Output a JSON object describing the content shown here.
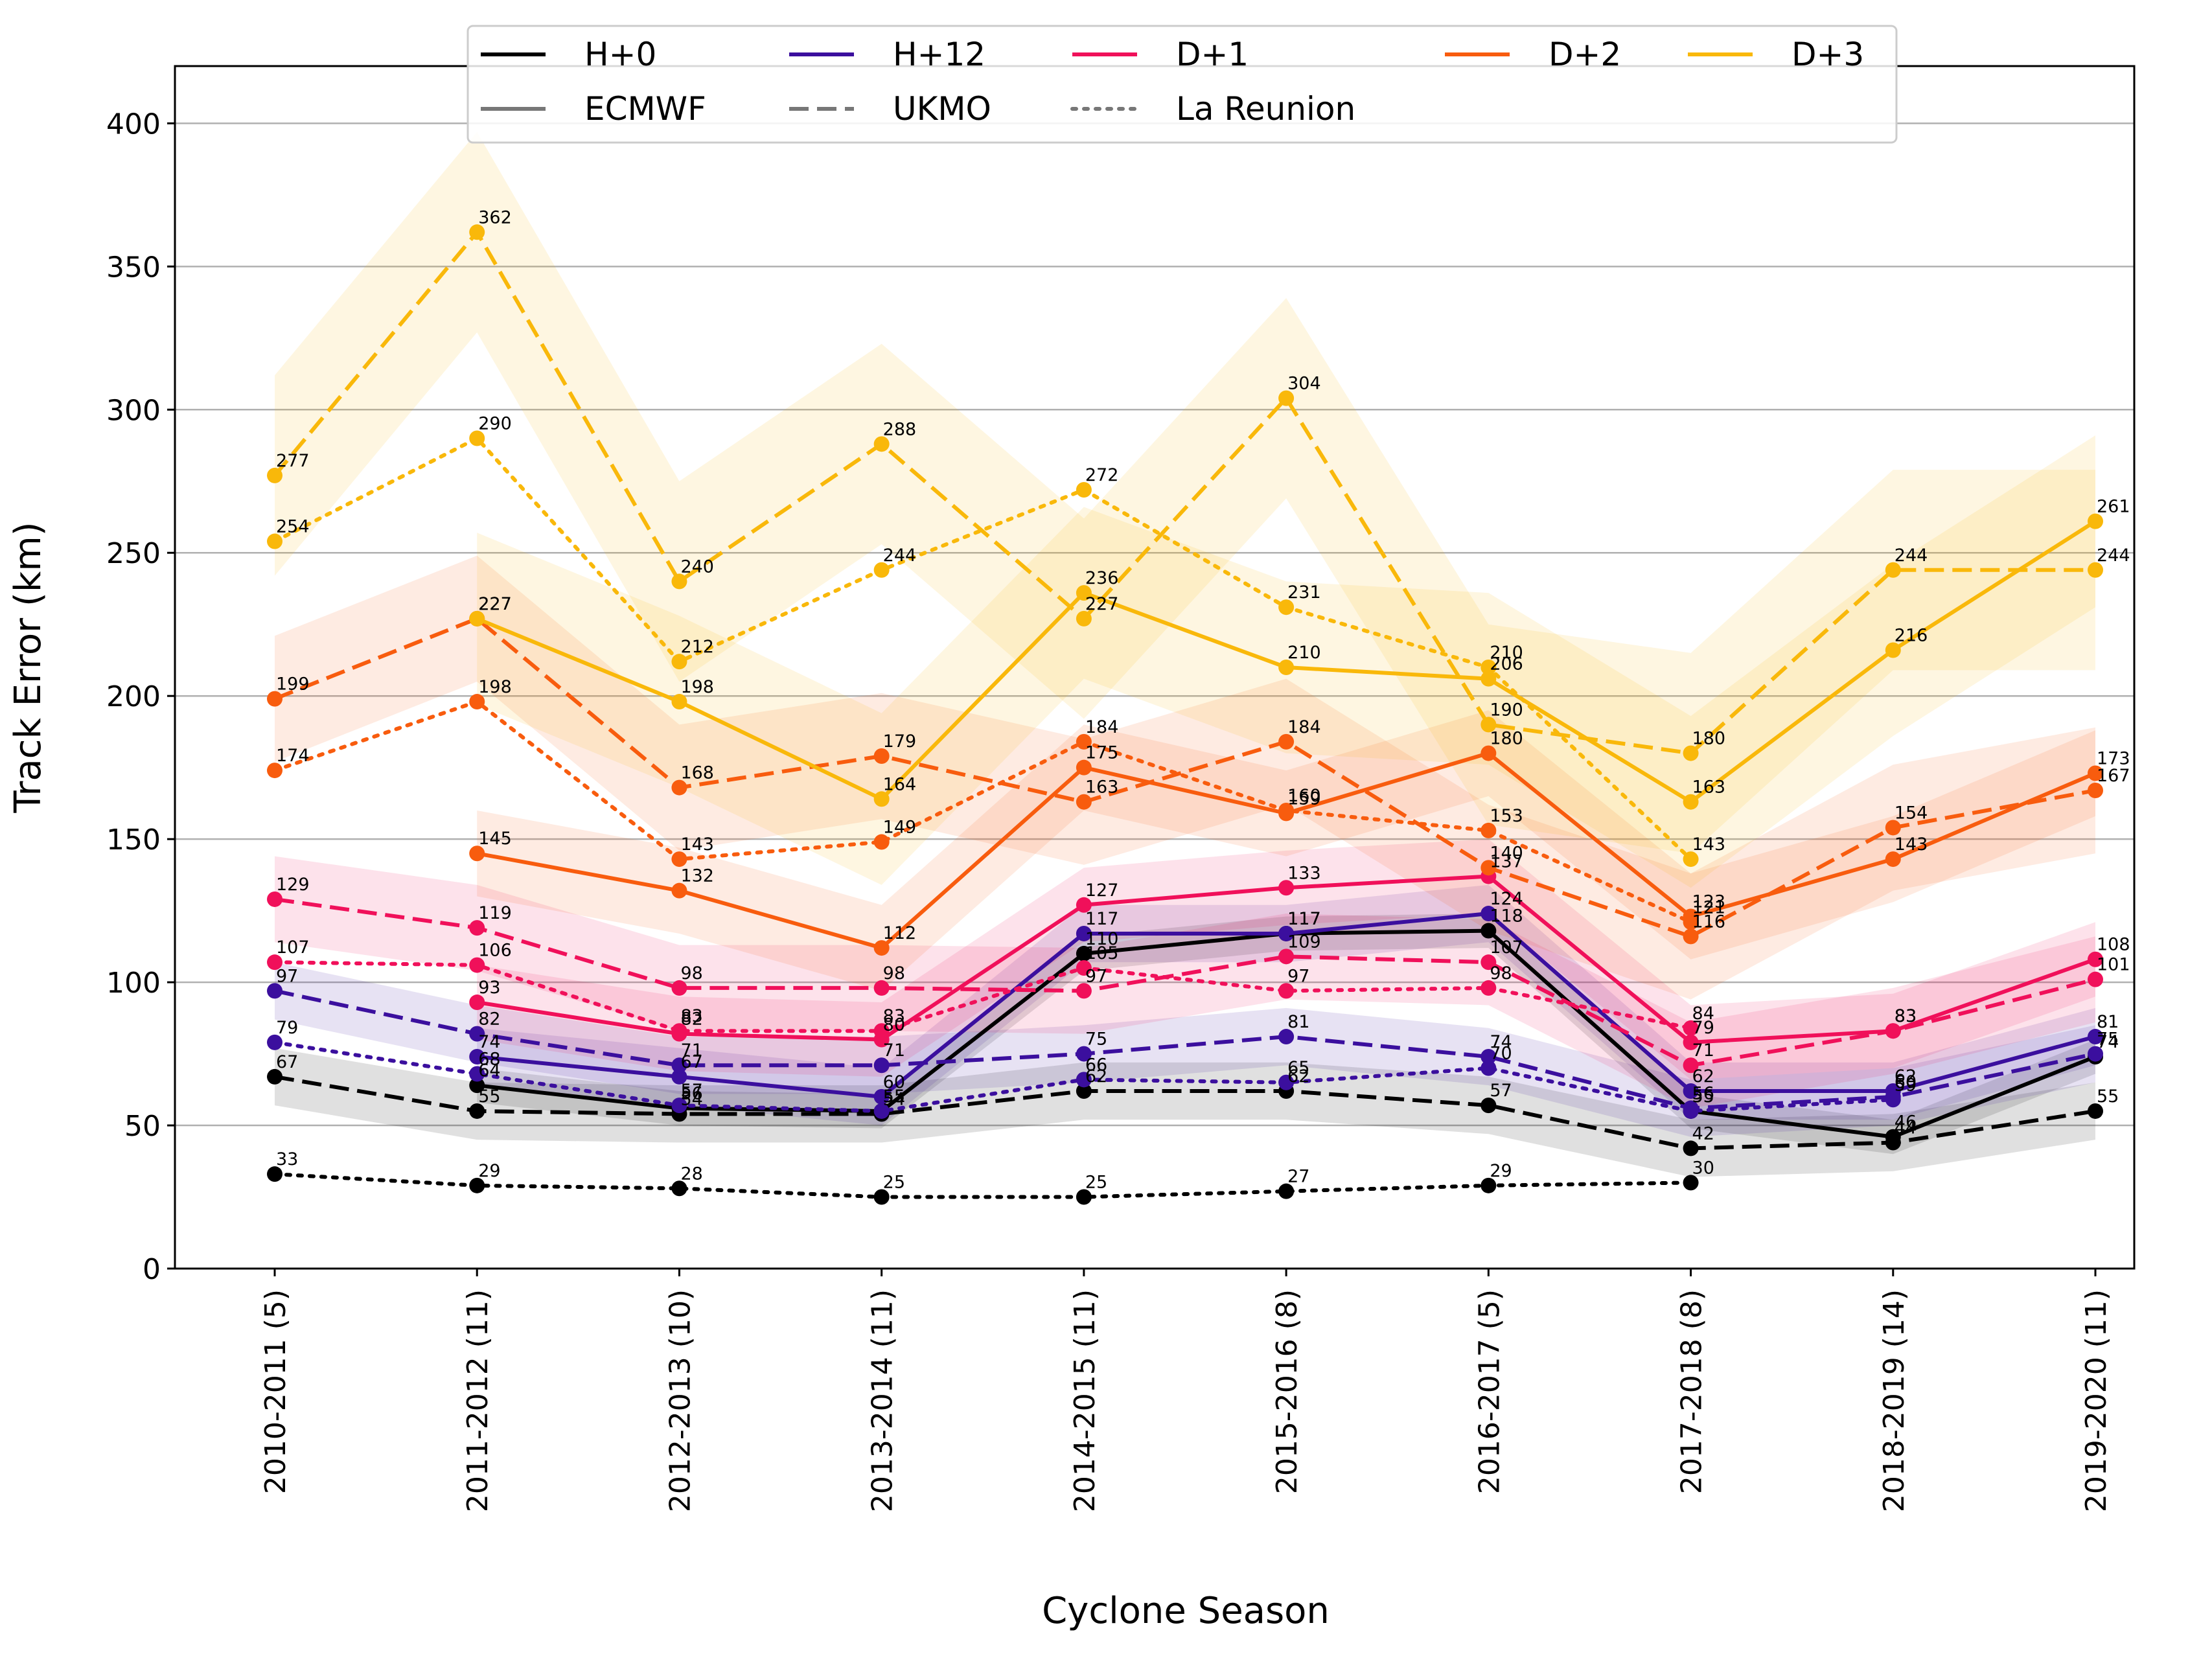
{
  "chart_data": {
    "type": "line",
    "title": "",
    "xlabel": "Cyclone Season",
    "ylabel": "Track Error (km)",
    "ylim": [
      0,
      420
    ],
    "yticks": [
      0,
      50,
      100,
      150,
      200,
      250,
      300,
      350,
      400
    ],
    "grid": "horizontal",
    "legend_position": "top",
    "categories": [
      "2010-2011 (5)",
      "2011-2012 (11)",
      "2012-2013 (10)",
      "2013-2014 (11)",
      "2014-2015 (11)",
      "2015-2016 (8)",
      "2016-2017 (5)",
      "2017-2018 (8)",
      "2018-2019 (14)",
      "2019-2020 (11)"
    ],
    "legend": {
      "lead_times": [
        {
          "label": "H+0",
          "color": "#000000"
        },
        {
          "label": "H+12",
          "color": "#3b0f9e"
        },
        {
          "label": "D+1",
          "color": "#f0105a"
        },
        {
          "label": "D+2",
          "color": "#f85c0e"
        },
        {
          "label": "D+3",
          "color": "#f9b80a"
        }
      ],
      "models": [
        {
          "label": "ECMWF",
          "style": "solid"
        },
        {
          "label": "UKMO",
          "style": "dashed"
        },
        {
          "label": "La Reunion",
          "style": "dotted"
        }
      ]
    },
    "series": [
      {
        "lead": "H+0",
        "model": "ECMWF",
        "color": "#000000",
        "style": "solid",
        "values": [
          null,
          64,
          56,
          55,
          110,
          117,
          118,
          55,
          46,
          74
        ],
        "band": 6
      },
      {
        "lead": "H+0",
        "model": "UKMO",
        "color": "#000000",
        "style": "dashed",
        "values": [
          67,
          55,
          54,
          54,
          62,
          62,
          57,
          42,
          44,
          55
        ],
        "band": 10
      },
      {
        "lead": "H+0",
        "model": "La Reunion",
        "color": "#000000",
        "style": "dotted",
        "values": [
          33,
          29,
          28,
          25,
          25,
          27,
          29,
          30,
          null,
          null
        ],
        "band": 0
      },
      {
        "lead": "H+12",
        "model": "ECMWF",
        "color": "#3b0f9e",
        "style": "solid",
        "values": [
          null,
          74,
          67,
          60,
          117,
          117,
          124,
          62,
          62,
          81
        ],
        "band": 10
      },
      {
        "lead": "H+12",
        "model": "UKMO",
        "color": "#3b0f9e",
        "style": "dashed",
        "values": [
          97,
          82,
          71,
          71,
          75,
          81,
          74,
          56,
          60,
          75
        ],
        "band": 10
      },
      {
        "lead": "H+12",
        "model": "La Reunion",
        "color": "#3b0f9e",
        "style": "dotted",
        "values": [
          79,
          68,
          57,
          55,
          66,
          65,
          70,
          55,
          59,
          null
        ],
        "band": 0
      },
      {
        "lead": "D+1",
        "model": "ECMWF",
        "color": "#f0105a",
        "style": "solid",
        "values": [
          null,
          93,
          82,
          80,
          127,
          133,
          137,
          79,
          83,
          108
        ],
        "band": 13
      },
      {
        "lead": "D+1",
        "model": "UKMO",
        "color": "#f0105a",
        "style": "dashed",
        "values": [
          129,
          119,
          98,
          98,
          97,
          109,
          107,
          71,
          83,
          101
        ],
        "band": 15
      },
      {
        "lead": "D+1",
        "model": "La Reunion",
        "color": "#f0105a",
        "style": "dotted",
        "values": [
          107,
          106,
          83,
          83,
          105,
          97,
          98,
          84,
          null,
          null
        ],
        "band": 0
      },
      {
        "lead": "D+2",
        "model": "ECMWF",
        "color": "#f85c0e",
        "style": "solid",
        "values": [
          null,
          145,
          132,
          112,
          175,
          159,
          180,
          123,
          143,
          173
        ],
        "band": 15
      },
      {
        "lead": "D+2",
        "model": "UKMO",
        "color": "#f85c0e",
        "style": "dashed",
        "values": [
          199,
          227,
          168,
          179,
          163,
          184,
          140,
          116,
          154,
          167
        ],
        "band": 22
      },
      {
        "lead": "D+2",
        "model": "La Reunion",
        "color": "#f85c0e",
        "style": "dotted",
        "values": [
          174,
          198,
          143,
          149,
          184,
          160,
          153,
          121,
          null,
          null
        ],
        "band": 0
      },
      {
        "lead": "D+3",
        "model": "ECMWF",
        "color": "#f9b80a",
        "style": "solid",
        "values": [
          null,
          227,
          198,
          164,
          236,
          210,
          206,
          163,
          216,
          261
        ],
        "band": 30
      },
      {
        "lead": "D+3",
        "model": "UKMO",
        "color": "#f9b80a",
        "style": "dashed",
        "values": [
          277,
          362,
          240,
          288,
          227,
          304,
          190,
          180,
          244,
          244
        ],
        "band": 35
      },
      {
        "lead": "D+3",
        "model": "La Reunion",
        "color": "#f9b80a",
        "style": "dotted",
        "values": [
          254,
          290,
          212,
          244,
          272,
          231,
          210,
          143,
          null,
          null
        ],
        "band": 0
      }
    ]
  }
}
